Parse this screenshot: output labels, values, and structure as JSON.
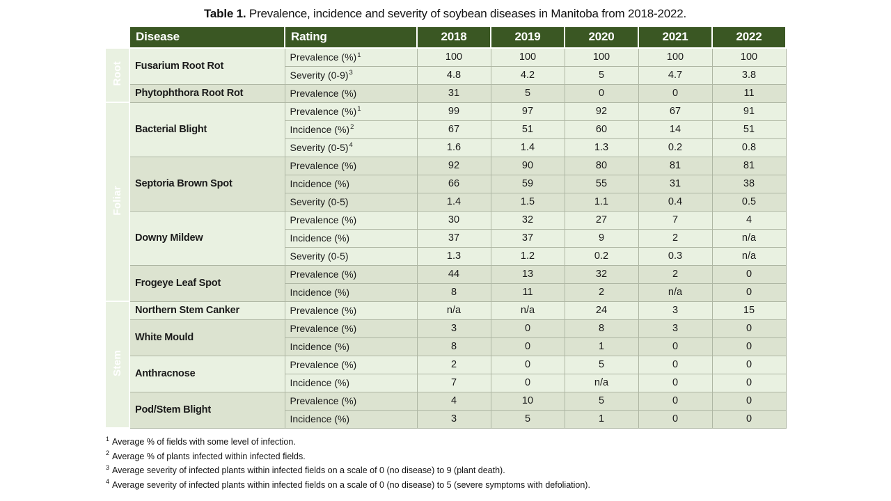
{
  "title": {
    "label": "Table 1.",
    "text": " Prevalence, incidence and severity of soybean diseases in Manitoba from 2018-2022."
  },
  "colors": {
    "header_green": "#3a5723",
    "group_green": "#2e7230",
    "row_light": "#e9f1e1",
    "row_dark": "#dce3d0",
    "grid_line": "#aeb6a3"
  },
  "table": {
    "headers": {
      "disease": "Disease",
      "rating": "Rating",
      "years": [
        "2018",
        "2019",
        "2020",
        "2021",
        "2022"
      ]
    },
    "groups": [
      {
        "name": "Root",
        "blocks": [
          {
            "name": "Fusarium Root Rot",
            "rows": [
              {
                "rating": "Prevalence (%)",
                "sup": "1",
                "values": [
                  "100",
                  "100",
                  "100",
                  "100",
                  "100"
                ]
              },
              {
                "rating": "Severity (0-9)",
                "sup": "3",
                "values": [
                  "4.8",
                  "4.2",
                  "5",
                  "4.7",
                  "3.8"
                ]
              }
            ]
          },
          {
            "name": "Phytophthora Root Rot",
            "rows": [
              {
                "rating": "Prevalence (%)",
                "sup": "",
                "values": [
                  "31",
                  "5",
                  "0",
                  "0",
                  "11"
                ]
              }
            ]
          }
        ]
      },
      {
        "name": "Foliar",
        "blocks": [
          {
            "name": "Bacterial Blight",
            "rows": [
              {
                "rating": "Prevalence (%)",
                "sup": "1",
                "values": [
                  "99",
                  "97",
                  "92",
                  "67",
                  "91"
                ]
              },
              {
                "rating": "Incidence (%)",
                "sup": "2",
                "values": [
                  "67",
                  "51",
                  "60",
                  "14",
                  "51"
                ]
              },
              {
                "rating": "Severity (0-5)",
                "sup": "4",
                "values": [
                  "1.6",
                  "1.4",
                  "1.3",
                  "0.2",
                  "0.8"
                ]
              }
            ]
          },
          {
            "name": "Septoria Brown Spot",
            "rows": [
              {
                "rating": "Prevalence (%)",
                "sup": "",
                "values": [
                  "92",
                  "90",
                  "80",
                  "81",
                  "81"
                ]
              },
              {
                "rating": "Incidence (%)",
                "sup": "",
                "values": [
                  "66",
                  "59",
                  "55",
                  "31",
                  "38"
                ]
              },
              {
                "rating": "Severity (0-5)",
                "sup": "",
                "values": [
                  "1.4",
                  "1.5",
                  "1.1",
                  "0.4",
                  "0.5"
                ]
              }
            ]
          },
          {
            "name": "Downy Mildew",
            "rows": [
              {
                "rating": "Prevalence (%)",
                "sup": "",
                "values": [
                  "30",
                  "32",
                  "27",
                  "7",
                  "4"
                ]
              },
              {
                "rating": "Incidence (%)",
                "sup": "",
                "values": [
                  "37",
                  "37",
                  "9",
                  "2",
                  "n/a"
                ]
              },
              {
                "rating": "Severity (0-5)",
                "sup": "",
                "values": [
                  "1.3",
                  "1.2",
                  "0.2",
                  "0.3",
                  "n/a"
                ]
              }
            ]
          },
          {
            "name": "Frogeye Leaf Spot",
            "rows": [
              {
                "rating": "Prevalence (%)",
                "sup": "",
                "values": [
                  "44",
                  "13",
                  "32",
                  "2",
                  "0"
                ]
              },
              {
                "rating": "Incidence (%)",
                "sup": "",
                "values": [
                  "8",
                  "11",
                  "2",
                  "n/a",
                  "0"
                ]
              }
            ]
          }
        ]
      },
      {
        "name": "Stem",
        "blocks": [
          {
            "name": "Northern Stem Canker",
            "rows": [
              {
                "rating": "Prevalence (%)",
                "sup": "",
                "values": [
                  "n/a",
                  "n/a",
                  "24",
                  "3",
                  "15"
                ]
              }
            ]
          },
          {
            "name": "White Mould",
            "rows": [
              {
                "rating": "Prevalence (%)",
                "sup": "",
                "values": [
                  "3",
                  "0",
                  "8",
                  "3",
                  "0"
                ]
              },
              {
                "rating": "Incidence (%)",
                "sup": "",
                "values": [
                  "8",
                  "0",
                  "1",
                  "0",
                  "0"
                ]
              }
            ]
          },
          {
            "name": "Anthracnose",
            "rows": [
              {
                "rating": "Prevalence (%)",
                "sup": "",
                "values": [
                  "2",
                  "0",
                  "5",
                  "0",
                  "0"
                ]
              },
              {
                "rating": "Incidence (%)",
                "sup": "",
                "values": [
                  "7",
                  "0",
                  "n/a",
                  "0",
                  "0"
                ]
              }
            ]
          },
          {
            "name": "Pod/Stem Blight",
            "rows": [
              {
                "rating": "Prevalence (%)",
                "sup": "",
                "values": [
                  "4",
                  "10",
                  "5",
                  "0",
                  "0"
                ]
              },
              {
                "rating": "Incidence (%)",
                "sup": "",
                "values": [
                  "3",
                  "5",
                  "1",
                  "0",
                  "0"
                ]
              }
            ]
          }
        ]
      }
    ]
  },
  "footnotes": [
    {
      "sup": "1",
      "text": "Average % of fields with some level of infection."
    },
    {
      "sup": "2",
      "text": "Average % of plants infected within infected fields."
    },
    {
      "sup": "3",
      "text": "Average severity of infected plants within infected fields on a scale of 0 (no disease) to 9 (plant death)."
    },
    {
      "sup": "4",
      "text": "Average severity of infected plants within infected fields on a scale of 0 (no disease) to 5 (severe symptoms with defoliation)."
    }
  ]
}
